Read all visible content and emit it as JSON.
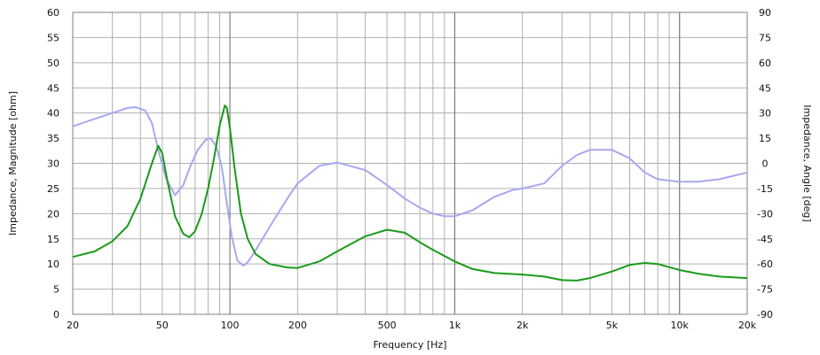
{
  "chart_data": {
    "type": "line",
    "title": "",
    "xlabel": "Frequency  [Hz]",
    "ylabel_left": "Impedance, Magnitude  [ohm]",
    "ylabel_right": "Impedance, Angle  [deg]",
    "x_scale": "log",
    "xlim": [
      20,
      20000
    ],
    "ylim_left": [
      0,
      60
    ],
    "ylim_right": [
      -90,
      90
    ],
    "grid": true,
    "x_ticks": [
      {
        "value": 20,
        "label": "20"
      },
      {
        "value": 50,
        "label": "50"
      },
      {
        "value": 100,
        "label": "100"
      },
      {
        "value": 200,
        "label": "200"
      },
      {
        "value": 500,
        "label": "500"
      },
      {
        "value": 1000,
        "label": "1k"
      },
      {
        "value": 2000,
        "label": "2k"
      },
      {
        "value": 5000,
        "label": "5k"
      },
      {
        "value": 10000,
        "label": "10k"
      },
      {
        "value": 20000,
        "label": "20k"
      }
    ],
    "y_ticks_left": [
      "0",
      "5",
      "10",
      "15",
      "20",
      "25",
      "30",
      "35",
      "40",
      "45",
      "50",
      "55",
      "60"
    ],
    "y_ticks_right": [
      "-90",
      "-75",
      "-60",
      "-45",
      "-30",
      "-15",
      "0",
      "15",
      "30",
      "45",
      "60",
      "75",
      "90"
    ],
    "series": [
      {
        "axis": "left",
        "color": "#1a9a1a",
        "x": [
          20,
          25,
          30,
          35,
          40,
          45,
          48,
          50,
          53,
          57,
          62,
          66,
          70,
          75,
          80,
          85,
          90,
          95,
          97,
          100,
          105,
          112,
          120,
          130,
          150,
          180,
          200,
          250,
          300,
          400,
          500,
          600,
          700,
          800,
          1000,
          1200,
          1500,
          2000,
          2500,
          3000,
          3500,
          4000,
          5000,
          6000,
          7000,
          8000,
          10000,
          12000,
          15000,
          20000
        ],
        "y": [
          11.4,
          12.5,
          14.5,
          17.5,
          23,
          30,
          33.5,
          32,
          26,
          19.5,
          16,
          15.3,
          16.5,
          20,
          25,
          31,
          37.5,
          41.5,
          41,
          37,
          29,
          20,
          15,
          12,
          10,
          9.3,
          9.2,
          10.5,
          12.5,
          15.5,
          16.8,
          16.2,
          14.3,
          12.8,
          10.5,
          9,
          8.2,
          7.9,
          7.5,
          6.8,
          6.7,
          7.2,
          8.5,
          9.8,
          10.2,
          10,
          8.8,
          8.1,
          7.5,
          7.2
        ]
      },
      {
        "axis": "right",
        "color": "#a8a8f0",
        "x": [
          20,
          25,
          30,
          35,
          38,
          42,
          45,
          48,
          52,
          57,
          62,
          67,
          72,
          78,
          82,
          87,
          92,
          97,
          102,
          108,
          115,
          120,
          130,
          150,
          180,
          200,
          250,
          300,
          400,
          500,
          600,
          700,
          800,
          900,
          1000,
          1200,
          1500,
          1800,
          2000,
          2500,
          3000,
          3500,
          4000,
          5000,
          6000,
          7000,
          8000,
          10000,
          12000,
          15000,
          20000
        ],
        "y": [
          22,
          26.5,
          30,
          33,
          33.5,
          31.5,
          24,
          8,
          -9,
          -19,
          -13,
          -1,
          8,
          14,
          15,
          10,
          -2,
          -24,
          -44,
          -58,
          -61,
          -59,
          -52,
          -38,
          -21,
          -12,
          -1.5,
          0.5,
          -4,
          -13,
          -21,
          -26.5,
          -30,
          -31.5,
          -31.5,
          -28,
          -20,
          -16,
          -15,
          -12,
          -1.5,
          5,
          8,
          8,
          3,
          -5.5,
          -9.5,
          -11,
          -11,
          -9.5,
          -5.5
        ]
      }
    ]
  }
}
